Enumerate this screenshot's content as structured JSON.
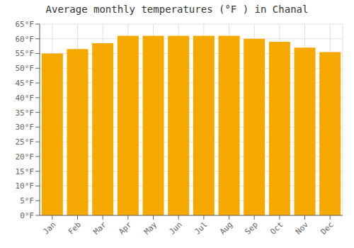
{
  "chart_data": {
    "type": "bar",
    "title": "Average monthly temperatures (°F ) in Chanal",
    "categories": [
      "Jan",
      "Feb",
      "Mar",
      "Apr",
      "May",
      "Jun",
      "Jul",
      "Aug",
      "Sep",
      "Oct",
      "Nov",
      "Dec"
    ],
    "values": [
      55,
      56.5,
      58.5,
      61,
      61,
      61,
      61,
      61,
      60,
      59,
      57,
      55.5
    ],
    "color": "#F5A800",
    "ylim": [
      0,
      65
    ],
    "yticks": [
      {
        "value": 0,
        "label": "0°F"
      },
      {
        "value": 5,
        "label": "5°F"
      },
      {
        "value": 10,
        "label": "10°F"
      },
      {
        "value": 15,
        "label": "15°F"
      },
      {
        "value": 20,
        "label": "20°F"
      },
      {
        "value": 25,
        "label": "25°F"
      },
      {
        "value": 30,
        "label": "30°F"
      },
      {
        "value": 35,
        "label": "35°F"
      },
      {
        "value": 40,
        "label": "40°F"
      },
      {
        "value": 45,
        "label": "45°F"
      },
      {
        "value": 50,
        "label": "50°F"
      },
      {
        "value": 55,
        "label": "55°F"
      },
      {
        "value": 60,
        "label": "60°F"
      },
      {
        "value": 65,
        "label": "65°F"
      }
    ],
    "grid": true
  }
}
